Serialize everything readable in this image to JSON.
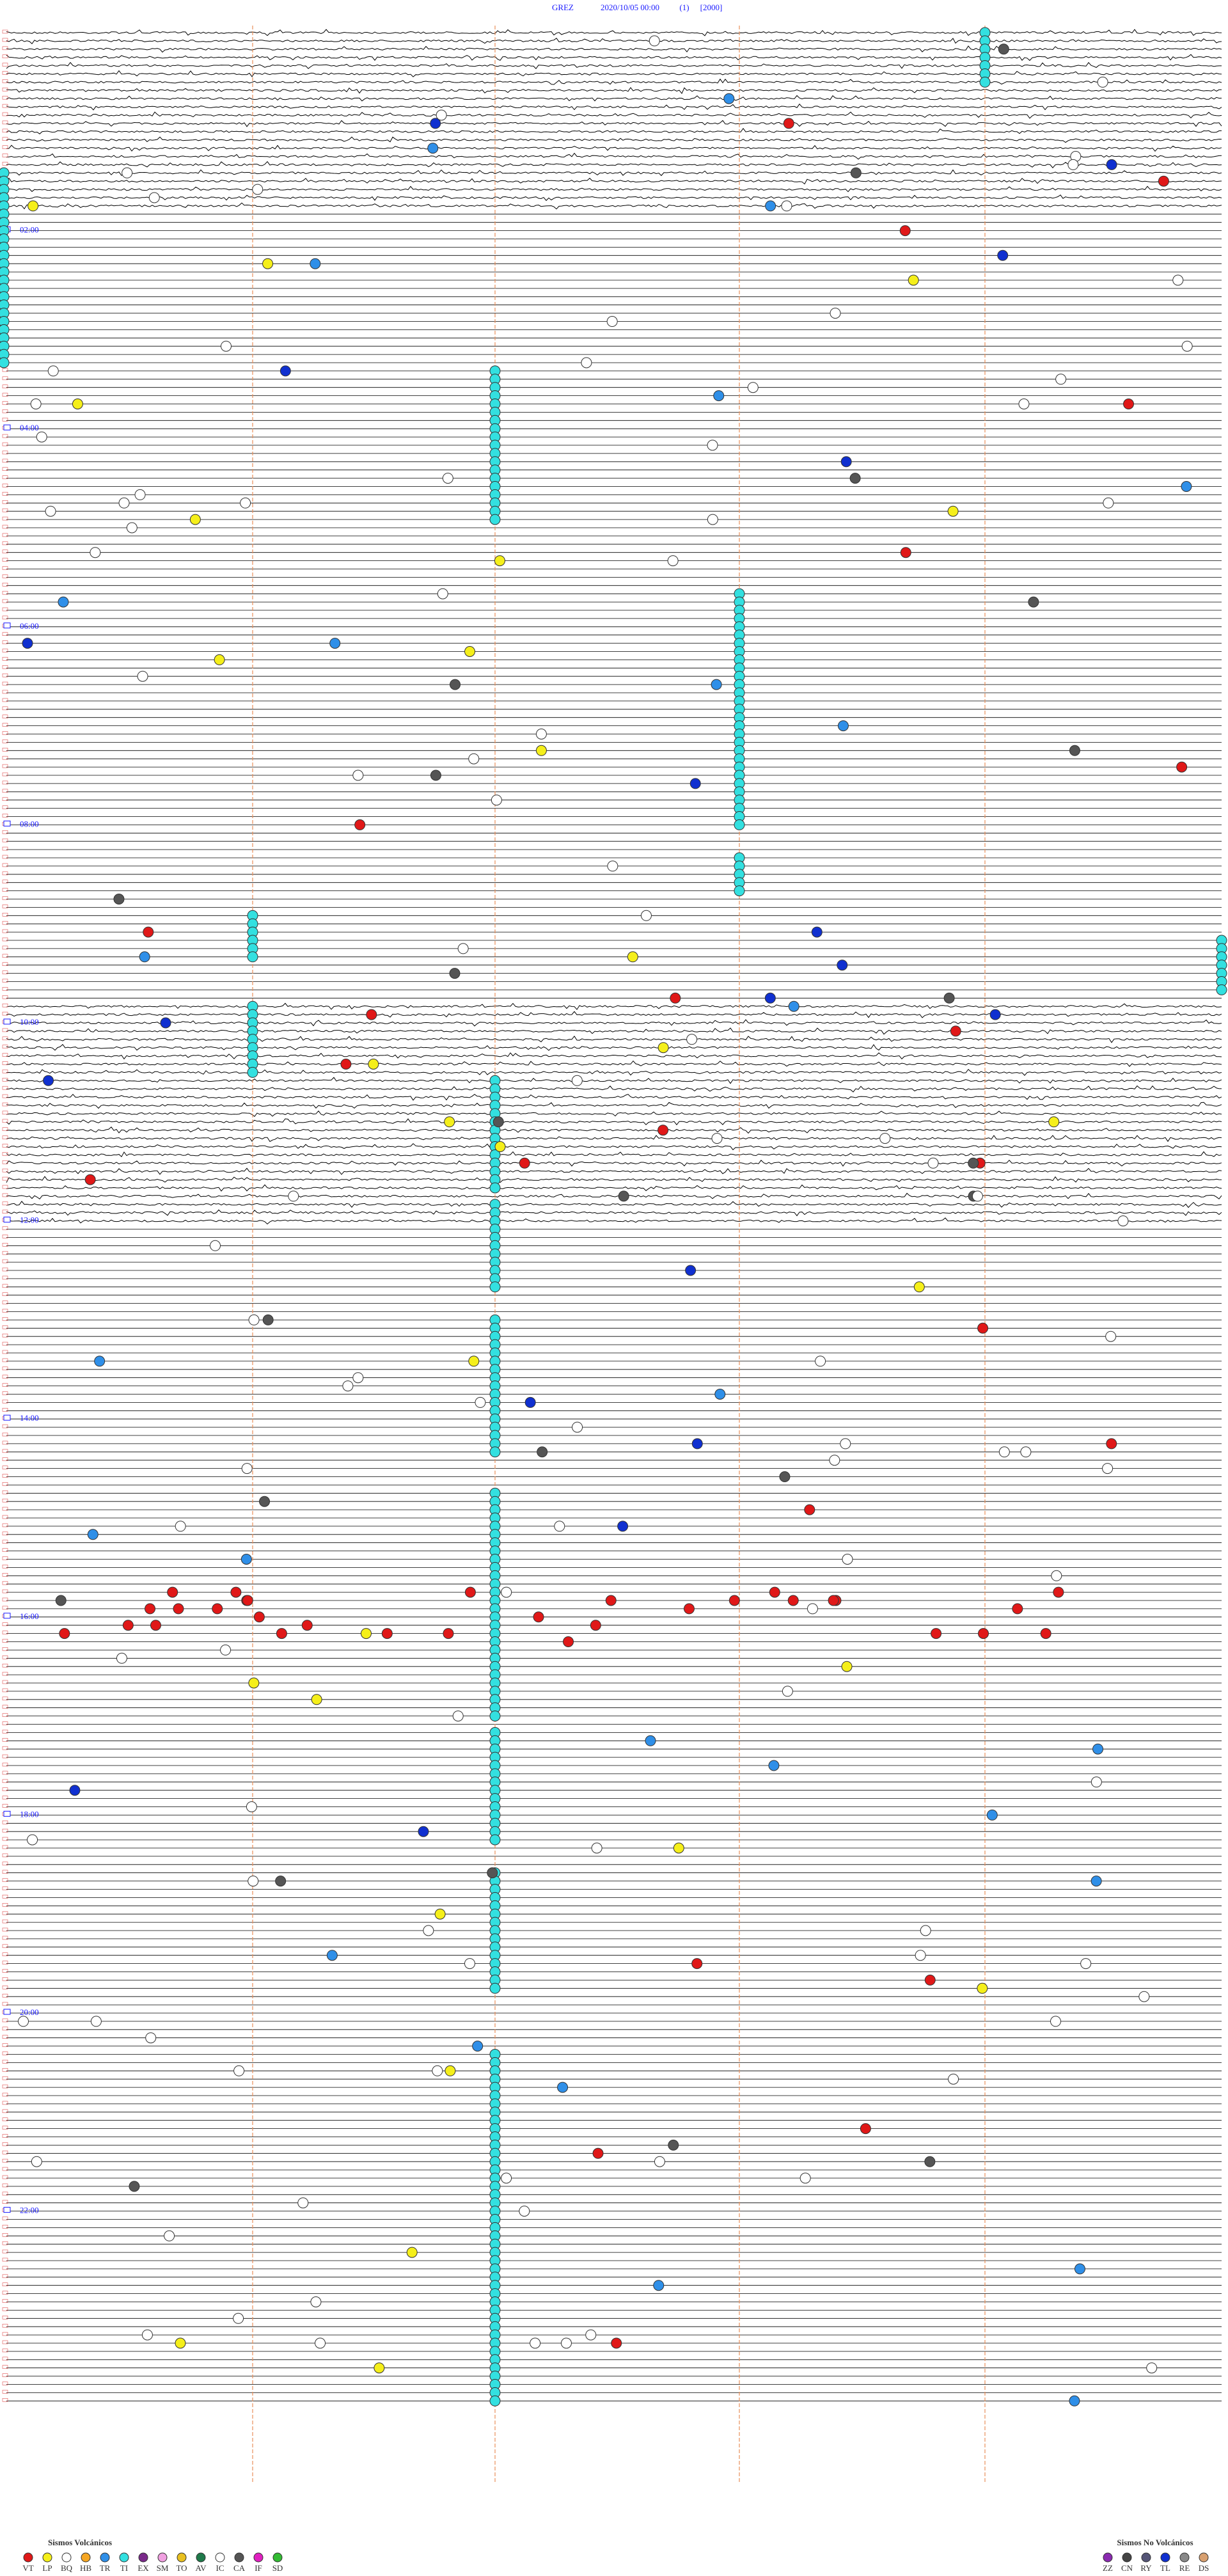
{
  "header": {
    "station": "GREZ",
    "datetime": "2020/10/05 00:00",
    "page": "(1)",
    "scale": "[2000]"
  },
  "hour_labels": [
    "02:00",
    "04:00",
    "06:00",
    "08:00",
    "10:00",
    "12:00",
    "14:00",
    "16:00",
    "18:00",
    "20:00",
    "22:00"
  ],
  "legend": {
    "volcanic": {
      "title": "Sismos Volcánicos",
      "items": [
        {
          "code": "VT",
          "color": "#e01818"
        },
        {
          "code": "LP",
          "color": "#f5ef1a"
        },
        {
          "code": "BQ",
          "color": "#ffffff"
        },
        {
          "code": "HB",
          "color": "#f5a623"
        },
        {
          "code": "TR",
          "color": "#2f8fe8"
        },
        {
          "code": "TI",
          "color": "#33e0e0"
        },
        {
          "code": "EX",
          "color": "#7a2a8a"
        },
        {
          "code": "SM",
          "color": "#f0a0e0"
        },
        {
          "code": "TO",
          "color": "#e8c020"
        },
        {
          "code": "AV",
          "color": "#1f7a4a"
        },
        {
          "code": "IC",
          "color": "#ffffff"
        },
        {
          "code": "CA",
          "color": "#555555"
        },
        {
          "code": "IF",
          "color": "#e020c0"
        },
        {
          "code": "SD",
          "color": "#33bb33"
        }
      ]
    },
    "non_volcanic": {
      "title": "Sismos No Volcánicos",
      "items": [
        {
          "code": "ZZ",
          "color": "#8a2ab0"
        },
        {
          "code": "CN",
          "color": "#444444"
        },
        {
          "code": "RY",
          "color": "#555577"
        },
        {
          "code": "TL",
          "color": "#1030d0"
        },
        {
          "code": "RE",
          "color": "#888888"
        },
        {
          "code": "DS",
          "color": "#d8a070"
        }
      ]
    }
  }
}
